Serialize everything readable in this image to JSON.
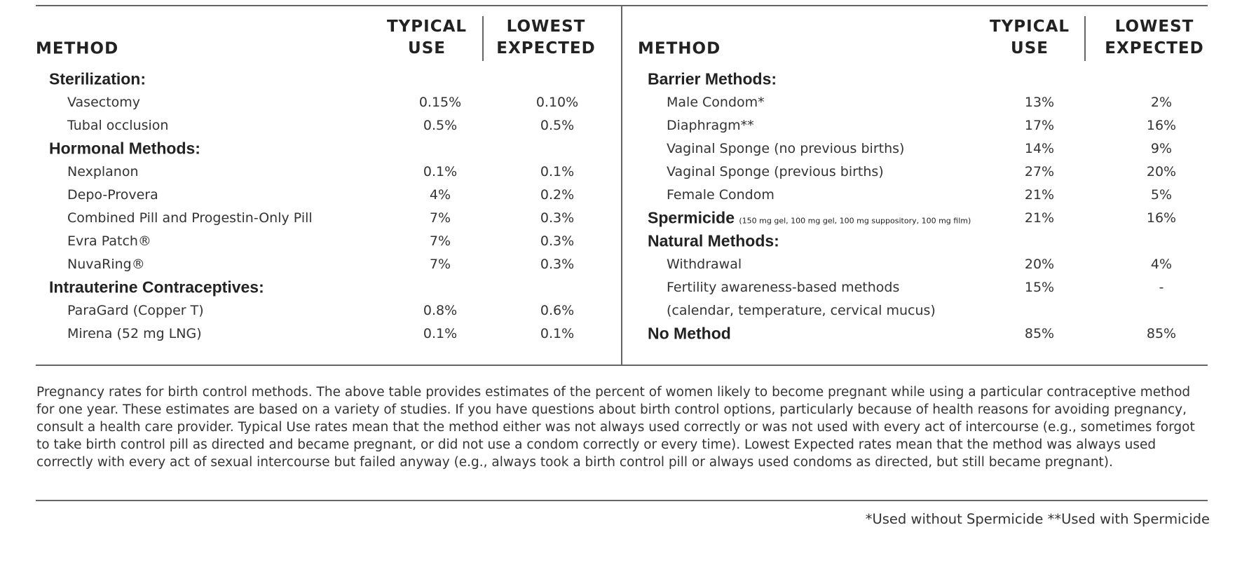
{
  "left_table": {
    "header": {
      "method": "METHOD",
      "typical_use": "TYPICAL USE",
      "lowest_expected": "LOWEST EXPECTED"
    },
    "groups": [
      {
        "heading": "Sterilization:",
        "items": [
          {
            "method": "Vasectomy",
            "typical": "0.15%",
            "lowest": "0.10%"
          },
          {
            "method": "Tubal occlusion",
            "typical": "0.5%",
            "lowest": "0.5%"
          }
        ]
      },
      {
        "heading": "Hormonal Methods:",
        "items": [
          {
            "method": "Nexplanon",
            "typical": "0.1%",
            "lowest": "0.1%"
          },
          {
            "method": "Depo-Provera",
            "typical": "4%",
            "lowest": "0.2%"
          },
          {
            "method": "Combined Pill and Progestin-Only Pill",
            "typical": "7%",
            "lowest": "0.3%"
          },
          {
            "method": "Evra Patch®",
            "typical": "7%",
            "lowest": "0.3%"
          },
          {
            "method": "NuvaRing®",
            "typical": "7%",
            "lowest": "0.3%"
          }
        ]
      },
      {
        "heading": "Intrauterine Contraceptives:",
        "items": [
          {
            "method": "ParaGard (Copper T)",
            "typical": "0.8%",
            "lowest": "0.6%"
          },
          {
            "method": "Mirena (52 mg LNG)",
            "typical": "0.1%",
            "lowest": "0.1%"
          }
        ]
      }
    ]
  },
  "right_table": {
    "header": {
      "method": "METHOD",
      "typical_use": "TYPICAL USE",
      "lowest_expected": "LOWEST EXPECTED"
    },
    "groups": [
      {
        "heading": "Barrier Methods:",
        "items": [
          {
            "method": "Male Condom*",
            "typical": "13%",
            "lowest": "2%"
          },
          {
            "method": "Diaphragm**",
            "typical": "17%",
            "lowest": "16%"
          },
          {
            "method": "Vaginal Sponge (no previous births)",
            "typical": "14%",
            "lowest": "9%"
          },
          {
            "method": "Vaginal Sponge (previous births)",
            "typical": "27%",
            "lowest": "20%"
          },
          {
            "method": "Female Condom",
            "typical": "21%",
            "lowest": "5%"
          }
        ]
      },
      {
        "heading": "Spermicide",
        "note": "(150 mg gel, 100 mg gel, 100 mg suppository, 100 mg film)",
        "typical": "21%",
        "lowest": "16%",
        "items": []
      },
      {
        "heading": "Natural Methods:",
        "items": [
          {
            "method": "Withdrawal",
            "typical": "20%",
            "lowest": "4%"
          },
          {
            "method": "Fertility awareness-based methods",
            "method_detail": "(calendar, temperature, cervical mucus)",
            "typical": "15%",
            "lowest": "-"
          }
        ]
      },
      {
        "heading": "No Method",
        "typical": "85%",
        "lowest": "85%",
        "items": []
      }
    ]
  },
  "caption": "Pregnancy rates for birth control methods. The above table provides estimates of the percent of women likely to become pregnant while using a particular contraceptive method for one year. These estimates are based on a variety of studies. If you have questions about birth control options, particularly because of health reasons for avoiding pregnancy, consult a health care provider. Typical Use rates mean that the method either was not always used correctly or was not used with every act of intercourse (e.g., sometimes forgot to take birth control pill as directed and became pregnant, or did not use a condom correctly or every time). Lowest Expected rates mean that the method was always used correctly with every act of sexual intercourse but failed anyway (e.g., always took a birth control pill or always used condoms as directed, but still became pregnant).",
  "footnote": "*Used without Spermicide **Used with Spermicide"
}
